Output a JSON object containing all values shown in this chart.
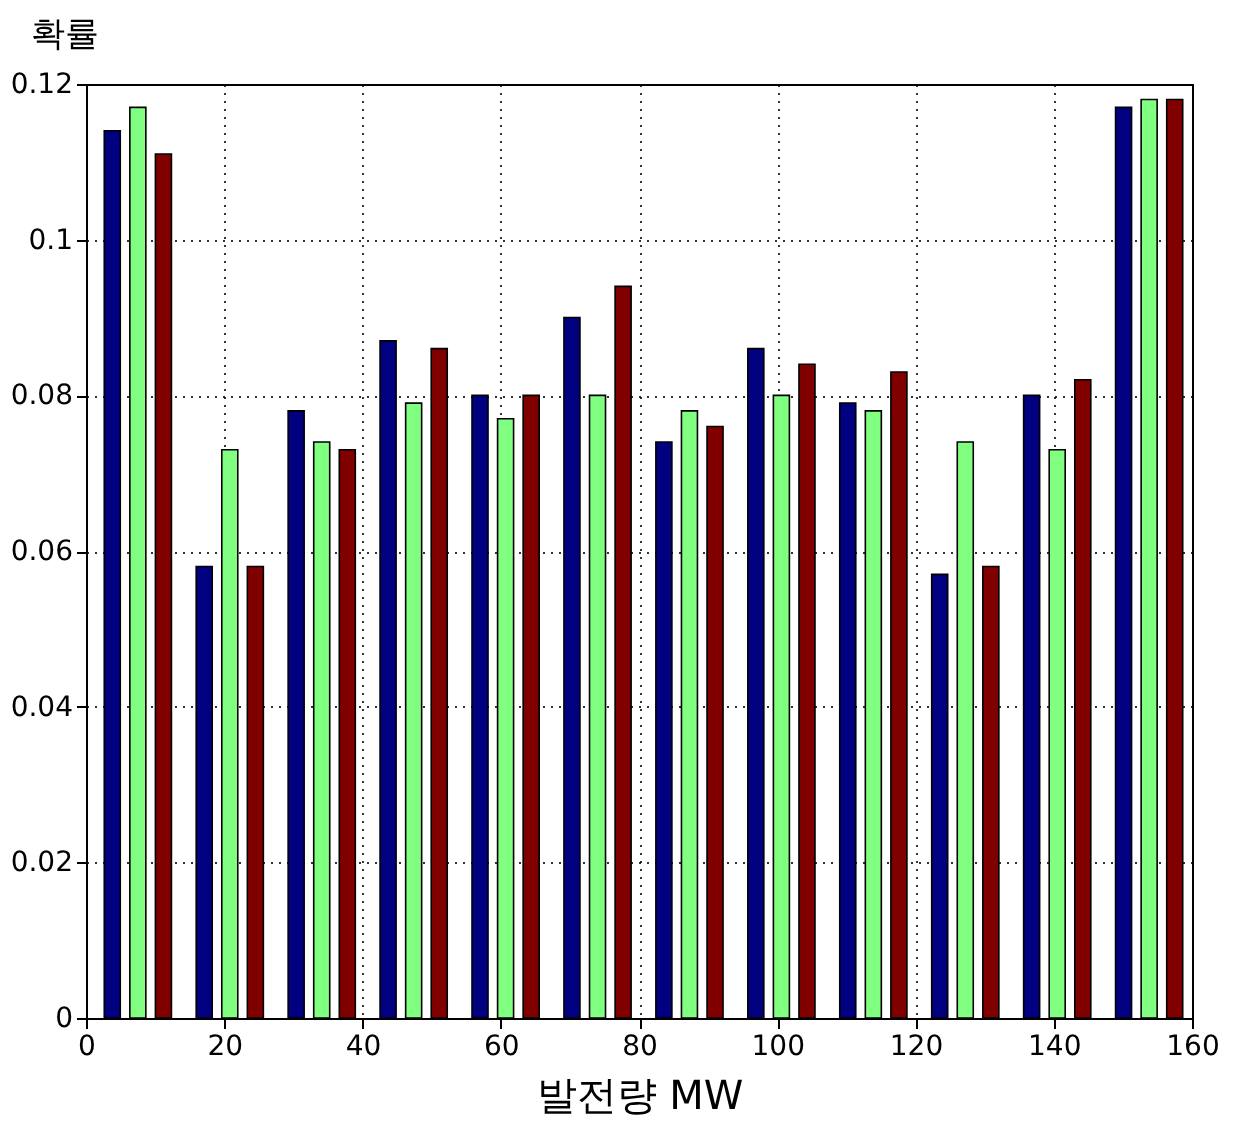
{
  "chart_data": {
    "type": "bar",
    "xlabel": "발전량 MW",
    "ylabel": "확률",
    "xlim": [
      0,
      160
    ],
    "xticks": [
      0,
      20,
      40,
      60,
      80,
      100,
      120,
      140,
      160
    ],
    "ylim": [
      0,
      0.12
    ],
    "yticks": [
      0,
      0.02,
      0.04,
      0.06,
      0.08,
      0.1,
      0.12
    ],
    "grid": true,
    "line_style": "dotted",
    "series": [
      {
        "color": "#000080",
        "x": [
          3.8,
          17.1,
          30.4,
          43.7,
          57.0,
          70.3,
          83.6,
          96.9,
          110.2,
          123.5,
          136.8,
          150.1
        ],
        "values": [
          0.114,
          0.058,
          0.078,
          0.087,
          0.08,
          0.09,
          0.074,
          0.086,
          0.079,
          0.057,
          0.08,
          0.117
        ]
      },
      {
        "color": "#80ff80",
        "x": [
          7.5,
          20.8,
          34.1,
          47.4,
          60.7,
          74.0,
          87.3,
          100.6,
          113.9,
          127.2,
          140.5,
          153.8
        ],
        "values": [
          0.117,
          0.073,
          0.074,
          0.079,
          0.077,
          0.08,
          0.078,
          0.08,
          0.078,
          0.074,
          0.073,
          0.118
        ]
      },
      {
        "color": "#800000",
        "x": [
          11.2,
          24.5,
          37.8,
          51.1,
          64.4,
          77.7,
          91.0,
          104.3,
          117.6,
          130.9,
          144.2,
          157.5
        ],
        "values": [
          0.111,
          0.058,
          0.073,
          0.086,
          0.08,
          0.094,
          0.076,
          0.084,
          0.083,
          0.058,
          0.082,
          0.118
        ]
      }
    ]
  }
}
